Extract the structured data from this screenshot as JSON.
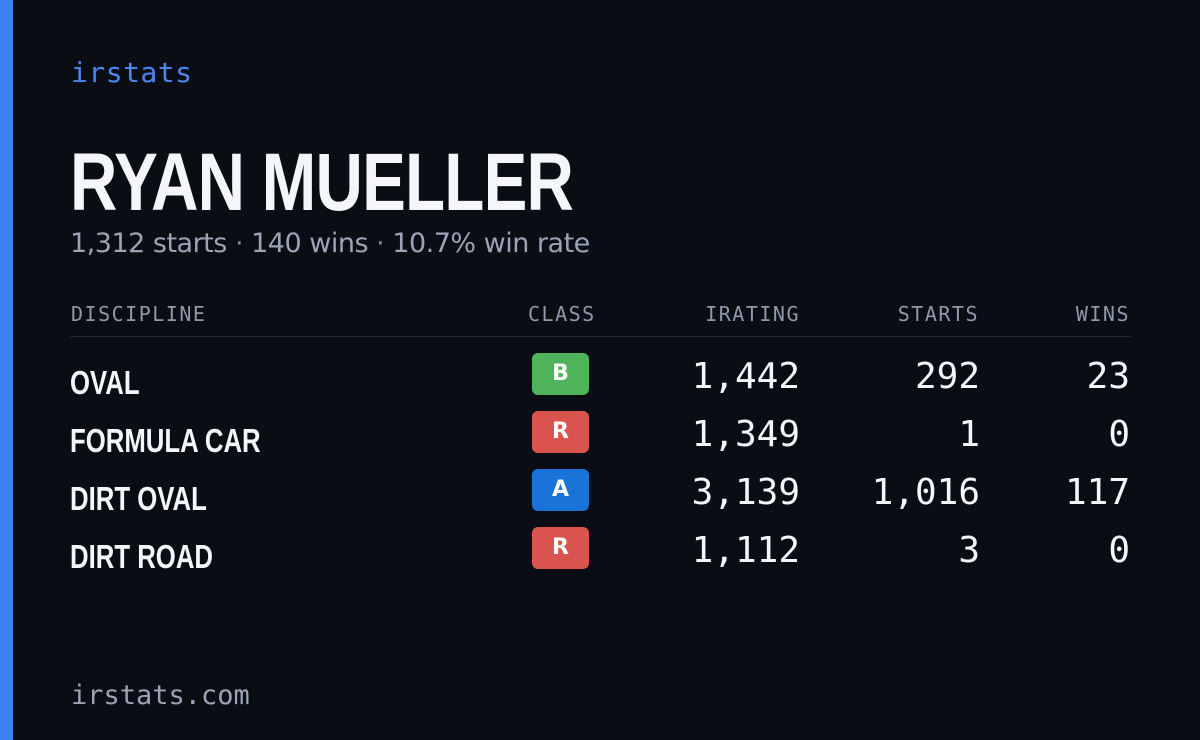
{
  "brand": "irstats",
  "player": {
    "name": "RYAN MUELLER",
    "starts_text": "1,312 starts",
    "wins_text": "140 wins",
    "win_rate_text": "10.7% win rate",
    "separator": "·"
  },
  "table": {
    "headers": {
      "discipline": "DISCIPLINE",
      "class": "CLASS",
      "irating": "IRATING",
      "starts": "STARTS",
      "wins": "WINS"
    },
    "rows": [
      {
        "discipline": "OVAL",
        "class": "B",
        "class_color": "#4fb35a",
        "irating": "1,442",
        "starts": "292",
        "wins": "23"
      },
      {
        "discipline": "FORMULA CAR",
        "class": "R",
        "class_color": "#d9534f",
        "irating": "1,349",
        "starts": "1",
        "wins": "0"
      },
      {
        "discipline": "DIRT OVAL",
        "class": "A",
        "class_color": "#1a73d9",
        "irating": "3,139",
        "starts": "1,016",
        "wins": "117"
      },
      {
        "discipline": "DIRT ROAD",
        "class": "R",
        "class_color": "#d9534f",
        "irating": "1,112",
        "starts": "3",
        "wins": "0"
      }
    ]
  },
  "footer": "irstats.com",
  "colors": {
    "background": "#0a0d14",
    "accent": "#3b82f6"
  }
}
